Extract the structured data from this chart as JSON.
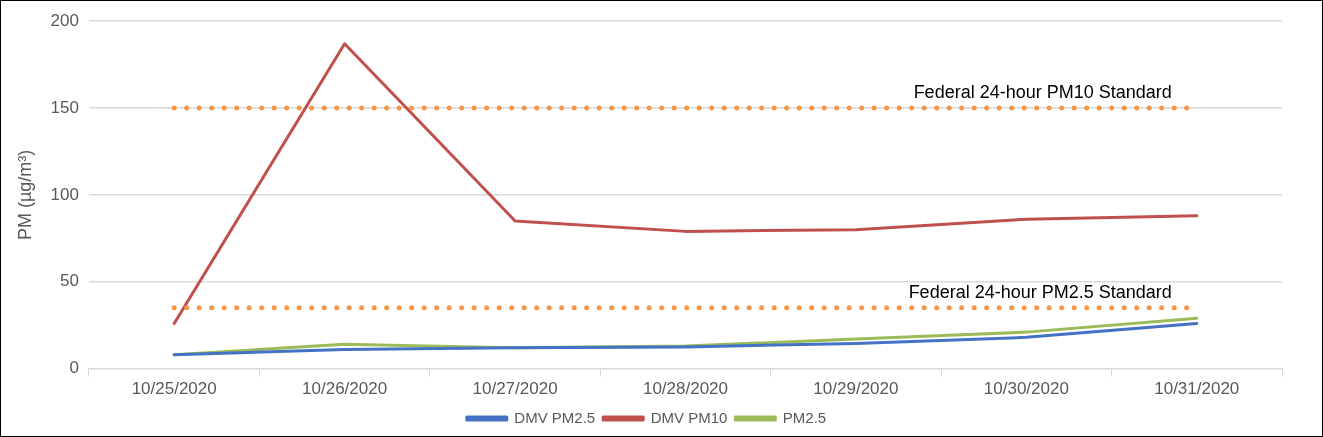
{
  "chart_data": {
    "type": "line",
    "ylabel": "PM (µg/m³)",
    "categories": [
      "10/25/2020",
      "10/26/2020",
      "10/27/2020",
      "10/28/2020",
      "10/29/2020",
      "10/30/2020",
      "10/31/2020"
    ],
    "series": [
      {
        "name": "DMV PM2.5",
        "color": "#4472c4",
        "values": [
          8,
          11,
          12,
          12.5,
          14.5,
          18,
          26
        ]
      },
      {
        "name": "DMV PM10",
        "color": "#c0504d",
        "values": [
          26,
          187,
          85,
          79,
          80,
          86,
          88
        ]
      },
      {
        "name": "PM2.5",
        "color": "#9bbb59",
        "values": [
          8,
          14,
          12,
          13,
          17,
          21,
          29
        ]
      }
    ],
    "ylim": [
      0,
      200
    ],
    "yticks": [
      0,
      50,
      100,
      150,
      200
    ],
    "grid": "y",
    "legend": "bottom",
    "marker": "none",
    "line_style": "solid",
    "ref_lines": [
      {
        "axis": "y",
        "value": 150,
        "label": "Federal 24-hour PM10 Standard",
        "color": "#f79646",
        "line_style": "dotted"
      },
      {
        "axis": "y",
        "value": 35,
        "label": "Federal 24-hour PM2.5 Standard",
        "color": "#f79646",
        "line_style": "dotted"
      }
    ]
  }
}
